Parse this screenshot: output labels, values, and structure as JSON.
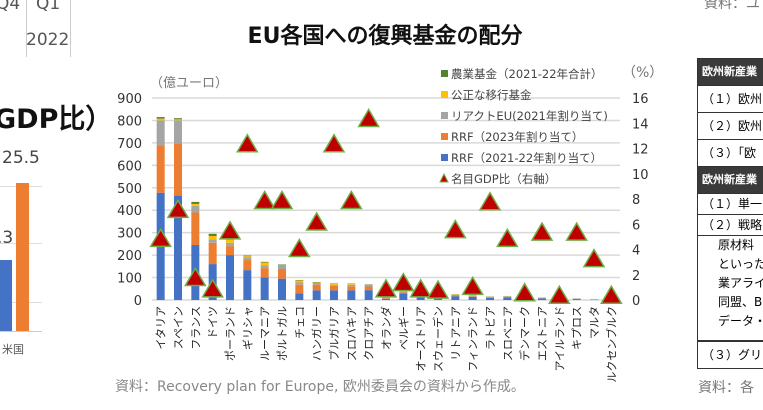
{
  "left_fragment": {
    "q4": "Q4",
    "q1": "Q1",
    "year": "2022",
    "heading": "GDP比）",
    "value1": "25.5",
    "value2": ".3",
    "category": "米国",
    "colors": {
      "blue": "#4472c4",
      "orange": "#ed7d31"
    }
  },
  "right_fragment": {
    "source_top": "資料：ユ",
    "rows": [
      "欧州新産業",
      "（１）欧州",
      "（２）欧州",
      "（３）「欧",
      "欧州新産業",
      "（１）単一",
      "（２）戦略"
    ],
    "body_lines": [
      "原材料",
      "といった",
      "業アライ",
      "同盟、B",
      "データ・"
    ],
    "last_row": "（３）グリ",
    "source": "資料：各"
  },
  "source_note": "資料：Recovery plan for Europe, 欧州委員会の資料から作成。",
  "chart_data": {
    "type": "bar",
    "stacked": true,
    "title": "EU各国への復興基金の配分",
    "ylabel": "（億ユーロ）",
    "y2label": "（%）",
    "ylim": [
      0,
      900
    ],
    "yticks": [
      0,
      100,
      200,
      300,
      400,
      500,
      600,
      700,
      800,
      900
    ],
    "y2lim": [
      0,
      16
    ],
    "y2ticks": [
      0,
      2,
      4,
      6,
      8,
      10,
      12,
      14,
      16
    ],
    "grid": true,
    "legend_position": "top-right",
    "categories": [
      "イタリア",
      "スペイン",
      "フランス",
      "ドイツ",
      "ポーランド",
      "ギリシャ",
      "ルーマニア",
      "ポルトガル",
      "チェコ",
      "ハンガリー",
      "ブルガリア",
      "スロバキア",
      "クロアチア",
      "オランダ",
      "ベルギー",
      "オーストリア",
      "スウェーデン",
      "リトアニア",
      "フィンランド",
      "ラトビア",
      "スロベニア",
      "デンマーク",
      "エストニア",
      "アイルランド",
      "キプロス",
      "マルタ",
      "ルクセンブルク"
    ],
    "series": [
      {
        "name": "RRF（2021-22年割り当て）",
        "color": "#4472c4",
        "values": [
          478,
          465,
          245,
          160,
          200,
          133,
          100,
          95,
          30,
          43,
          43,
          43,
          44,
          5,
          30,
          18,
          15,
          17,
          14,
          10,
          12,
          6,
          7,
          4,
          4,
          2,
          1
        ]
      },
      {
        "name": "RRF（2023年割り当て）",
        "color": "#ed7d31",
        "values": [
          210,
          230,
          145,
          95,
          40,
          45,
          42,
          43,
          38,
          25,
          20,
          18,
          16,
          2,
          4,
          2,
          2,
          3,
          2,
          2,
          2,
          1,
          1,
          0,
          1,
          0,
          0
        ]
      },
      {
        "name": "リアクトEU(2021年割り当て)",
        "color": "#a5a5a5",
        "values": [
          112,
          105,
          30,
          15,
          15,
          12,
          13,
          17,
          10,
          8,
          5,
          7,
          7,
          2,
          3,
          2,
          3,
          3,
          3,
          2,
          2,
          1,
          1,
          1,
          1,
          0,
          0
        ]
      },
      {
        "name": "公正な移行基金",
        "color": "#ffc000",
        "values": [
          8,
          5,
          8,
          15,
          15,
          5,
          12,
          0,
          9,
          2,
          4,
          3,
          0,
          1,
          1,
          1,
          1,
          2,
          1,
          1,
          1,
          0,
          1,
          0,
          0,
          0,
          0
        ]
      },
      {
        "name": "農業基金（2021-22年合計）",
        "color": "#548235",
        "values": [
          7,
          5,
          9,
          10,
          5,
          3,
          3,
          3,
          2,
          2,
          2,
          2,
          2,
          1,
          1,
          1,
          1,
          1,
          1,
          1,
          1,
          1,
          1,
          1,
          1,
          0,
          0
        ]
      }
    ],
    "line_series": {
      "name": "名目GDP比（右軸）",
      "marker": "triangle",
      "color": "#c00000",
      "edge": "#70ad47",
      "values": [
        4.8,
        7.1,
        1.7,
        0.8,
        5.4,
        12.3,
        7.8,
        7.8,
        4.0,
        6.1,
        12.3,
        7.8,
        14.3,
        0.8,
        1.3,
        0.8,
        0.7,
        5.5,
        1.0,
        7.7,
        4.8,
        0.5,
        5.3,
        0.3,
        5.3,
        3.2,
        0.3
      ]
    }
  }
}
